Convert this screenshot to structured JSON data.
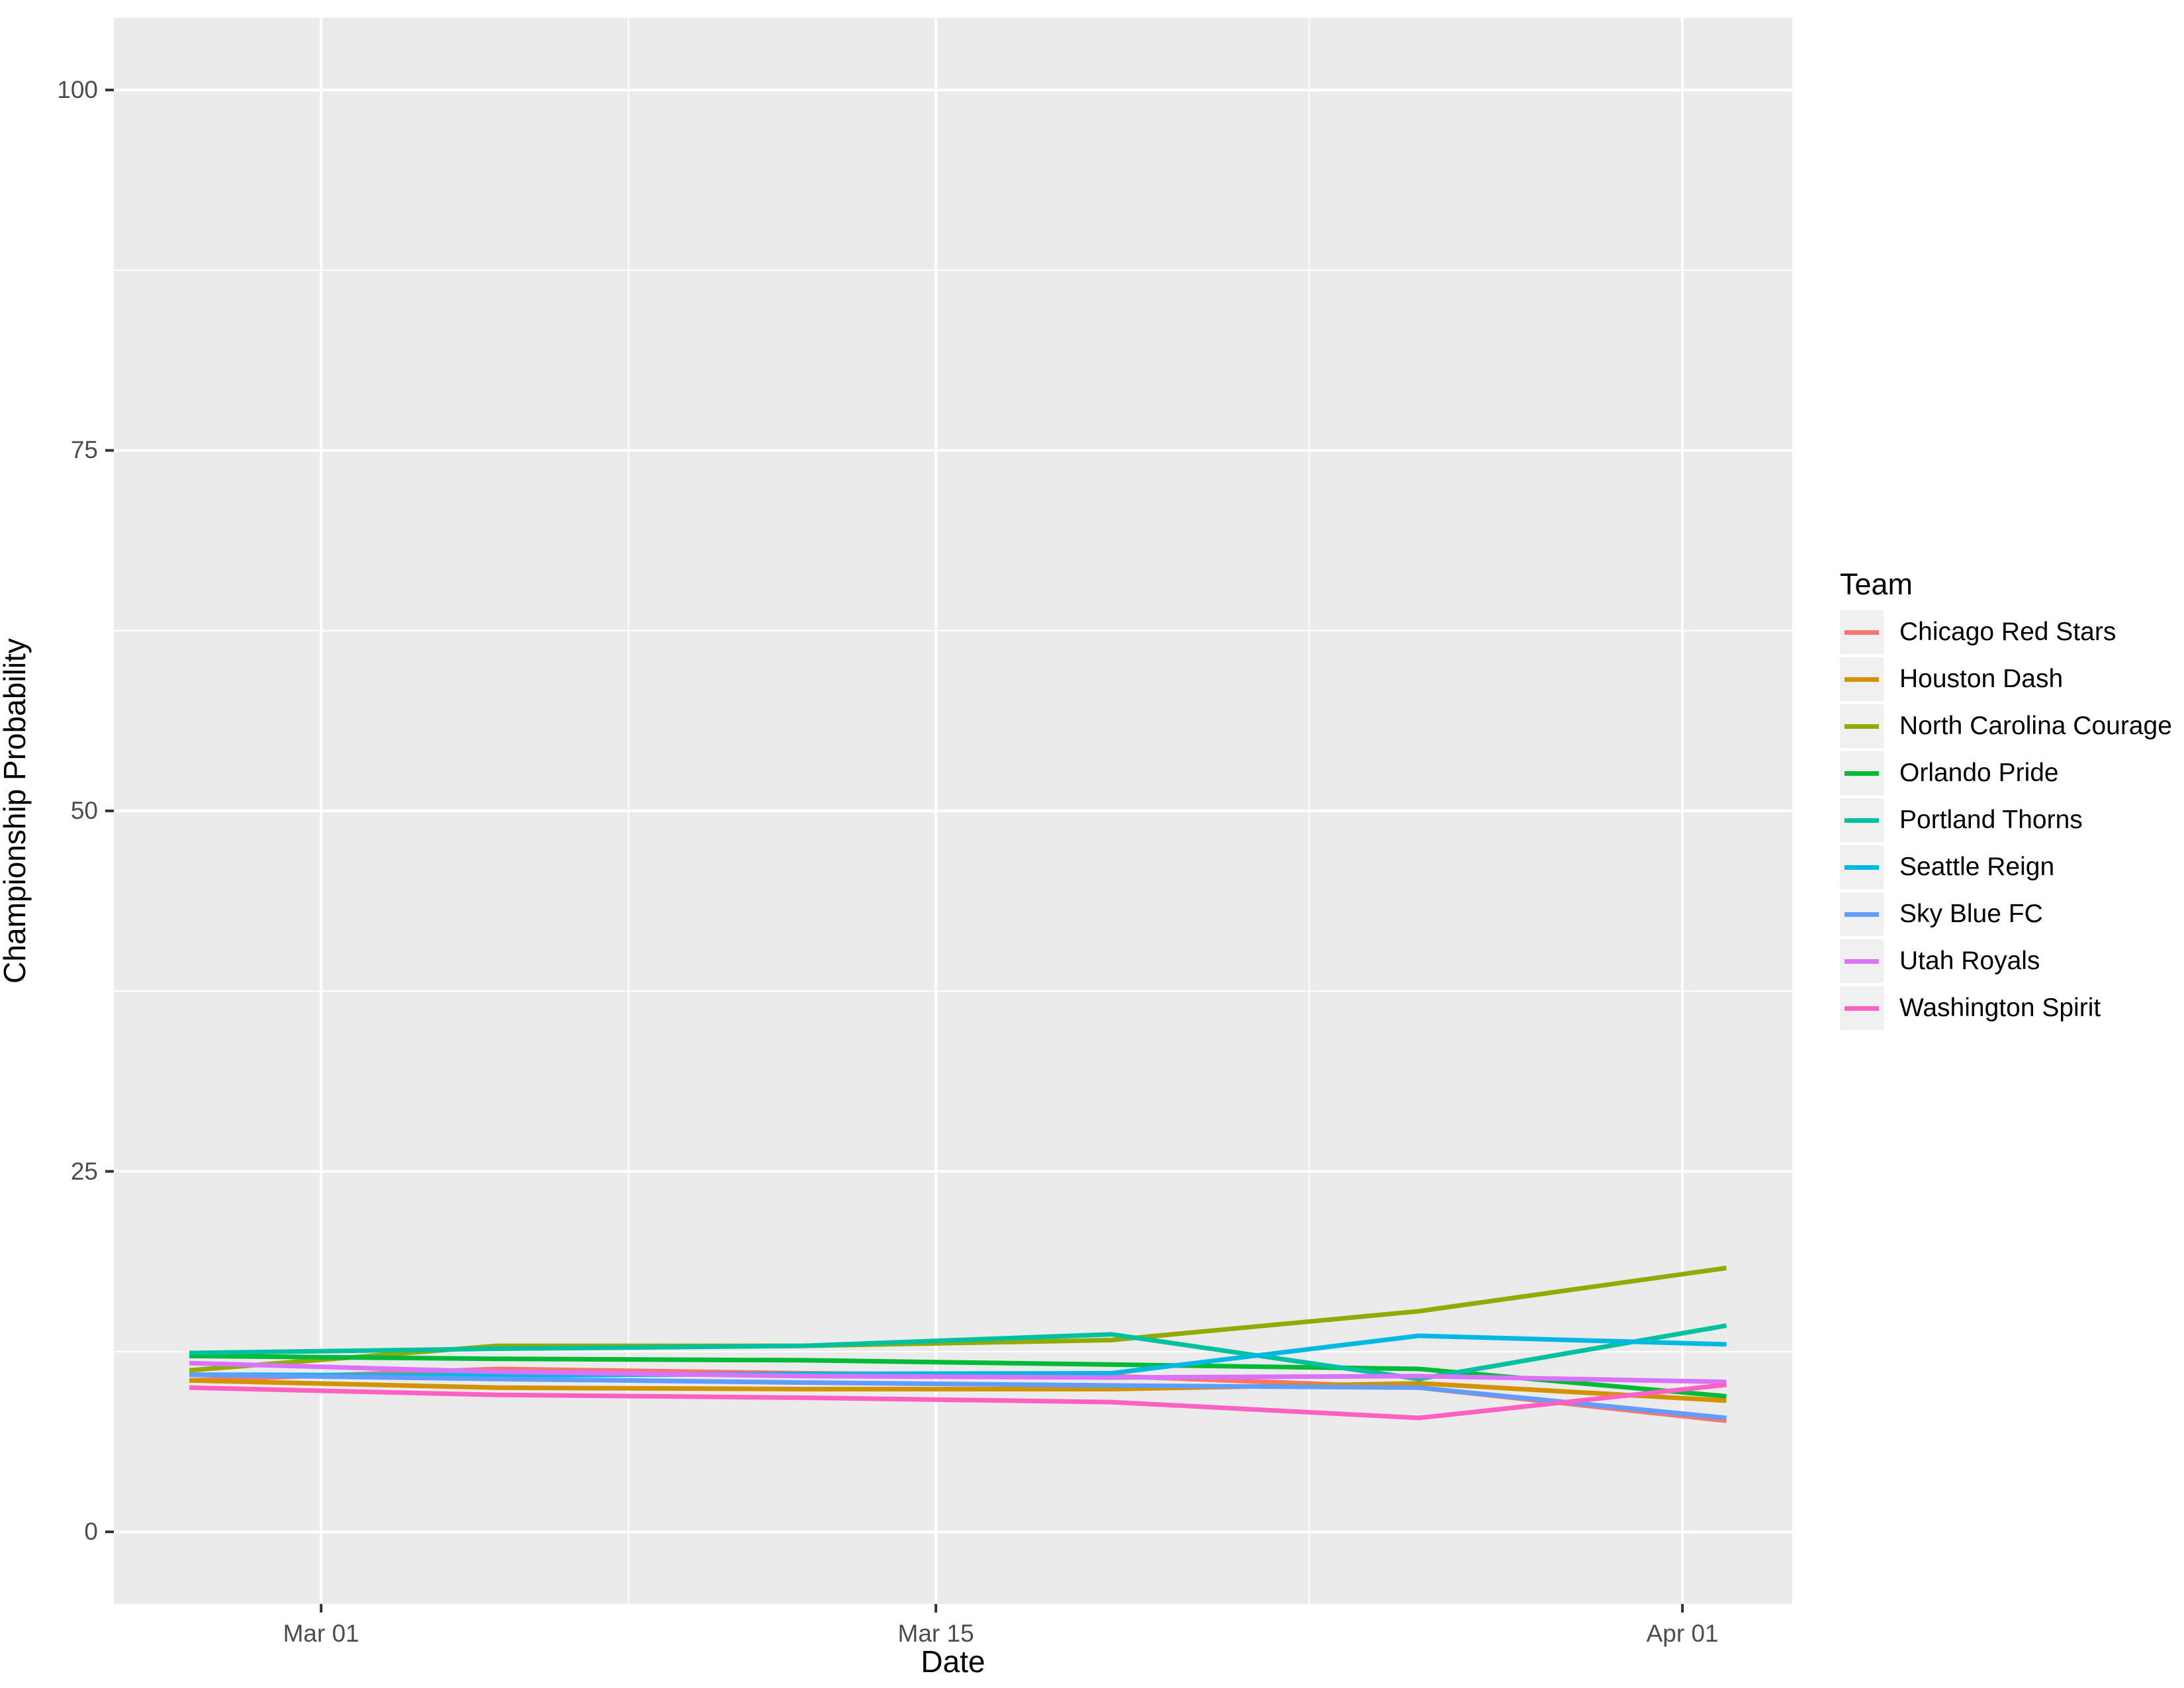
{
  "chart_data": {
    "type": "line",
    "title": "",
    "xlabel": "Date",
    "ylabel": "Championship Probability",
    "legend_title": "Team",
    "legend_position": "right",
    "grid": "on",
    "panel_bg": "#EBEBEB",
    "grid_color": "#FFFFFF",
    "tick_color": "#333333",
    "tick_label_color": "#4D4D4D",
    "axis_title_color": "#000000",
    "legend_key_bg": "#F0F0F0",
    "x_axis": {
      "tick_labels": [
        "Mar 01",
        "Mar 15",
        "Apr 01"
      ],
      "tick_days": [
        3,
        17,
        34
      ],
      "minor_days": [
        10,
        25.5
      ],
      "domain_days": [
        -1.72,
        36.5
      ]
    },
    "y_axis": {
      "tick_labels": [
        "0",
        "25",
        "50",
        "75",
        "100"
      ],
      "tick_values": [
        0,
        25,
        50,
        75,
        100
      ],
      "minor_values": [
        12.5,
        37.5,
        62.5,
        87.5
      ],
      "ylim": [
        -5,
        105
      ]
    },
    "x_points": {
      "date_labels": [
        "Feb 26",
        "Mar 05",
        "Mar 12",
        "Mar 19",
        "Mar 26",
        "Apr 02"
      ],
      "days": [
        0,
        7,
        14,
        21,
        28,
        35
      ]
    },
    "series": [
      {
        "name": "Chicago Red Stars",
        "color": "#F8766D",
        "values": [
          10.5,
          11.3,
          11.0,
          10.8,
          10.0,
          7.7
        ]
      },
      {
        "name": "Houston Dash",
        "color": "#D39200",
        "values": [
          10.5,
          10.0,
          9.9,
          9.9,
          10.3,
          9.1
        ]
      },
      {
        "name": "North Carolina Courage",
        "color": "#93AA00",
        "values": [
          11.2,
          12.9,
          12.9,
          13.3,
          15.3,
          18.3
        ]
      },
      {
        "name": "Orlando Pride",
        "color": "#00BA38",
        "values": [
          12.2,
          12.0,
          11.9,
          11.6,
          11.3,
          9.4
        ]
      },
      {
        "name": "Portland Thorns",
        "color": "#00C19F",
        "values": [
          12.4,
          12.7,
          12.9,
          13.7,
          10.6,
          14.3
        ]
      },
      {
        "name": "Seattle Reign",
        "color": "#00B9E3",
        "values": [
          10.9,
          10.85,
          10.95,
          11.0,
          13.6,
          13.0
        ]
      },
      {
        "name": "Sky Blue FC",
        "color": "#619CFF",
        "values": [
          10.9,
          10.6,
          10.35,
          10.15,
          10.0,
          7.9
        ]
      },
      {
        "name": "Utah Royals",
        "color": "#DB72FB",
        "values": [
          11.7,
          11.1,
          10.8,
          10.7,
          10.8,
          10.4
        ]
      },
      {
        "name": "Washington Spirit",
        "color": "#FF61C3",
        "values": [
          10.0,
          9.5,
          9.3,
          9.0,
          7.9,
          10.2
        ]
      }
    ]
  }
}
